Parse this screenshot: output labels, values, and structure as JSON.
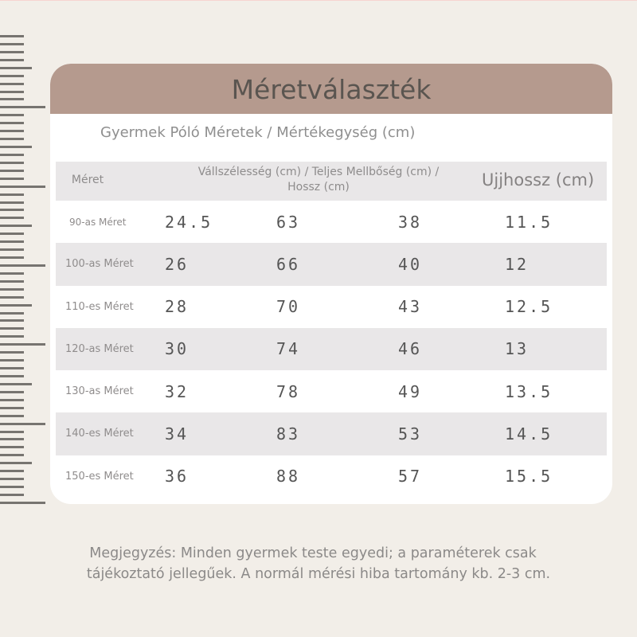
{
  "card": {
    "title": "Méretválaszték",
    "subtitle": "Gyermek Póló Méretek / Mértékegység (cm)"
  },
  "table": {
    "headers": {
      "size": "Méret",
      "main_line1": "Vállszélesség (cm) / Teljes Mellbőség (cm) /",
      "main_line2": "Hossz (cm)",
      "sleeve": "Ujjhossz (cm)"
    },
    "rows": [
      {
        "size": "90-as Méret",
        "shoulder": "24.5",
        "chest": "63",
        "length": "38",
        "sleeve": "11.5"
      },
      {
        "size": "100-as Méret",
        "shoulder": "26",
        "chest": "66",
        "length": "40",
        "sleeve": "12"
      },
      {
        "size": "110-es Méret",
        "shoulder": "28",
        "chest": "70",
        "length": "43",
        "sleeve": "12.5"
      },
      {
        "size": "120-as Méret",
        "shoulder": "30",
        "chest": "74",
        "length": "46",
        "sleeve": "13"
      },
      {
        "size": "130-as Méret",
        "shoulder": "32",
        "chest": "78",
        "length": "49",
        "sleeve": "13.5"
      },
      {
        "size": "140-es Méret",
        "shoulder": "34",
        "chest": "83",
        "length": "53",
        "sleeve": "14.5"
      },
      {
        "size": "150-es Méret",
        "shoulder": "36",
        "chest": "88",
        "length": "57",
        "sleeve": "15.5"
      }
    ]
  },
  "note": {
    "line1": "Megjegyzés: Minden gyermek teste egyedi; a paraméterek csak",
    "line2": "tájékoztató jellegűek. A normál mérési hiba tartomány kb. 2-3 cm."
  },
  "colors": {
    "background": "#f2eee8",
    "header_band": "#b59a8e",
    "row_alt": "#e9e7e8",
    "ruler_tick": "#777470"
  }
}
